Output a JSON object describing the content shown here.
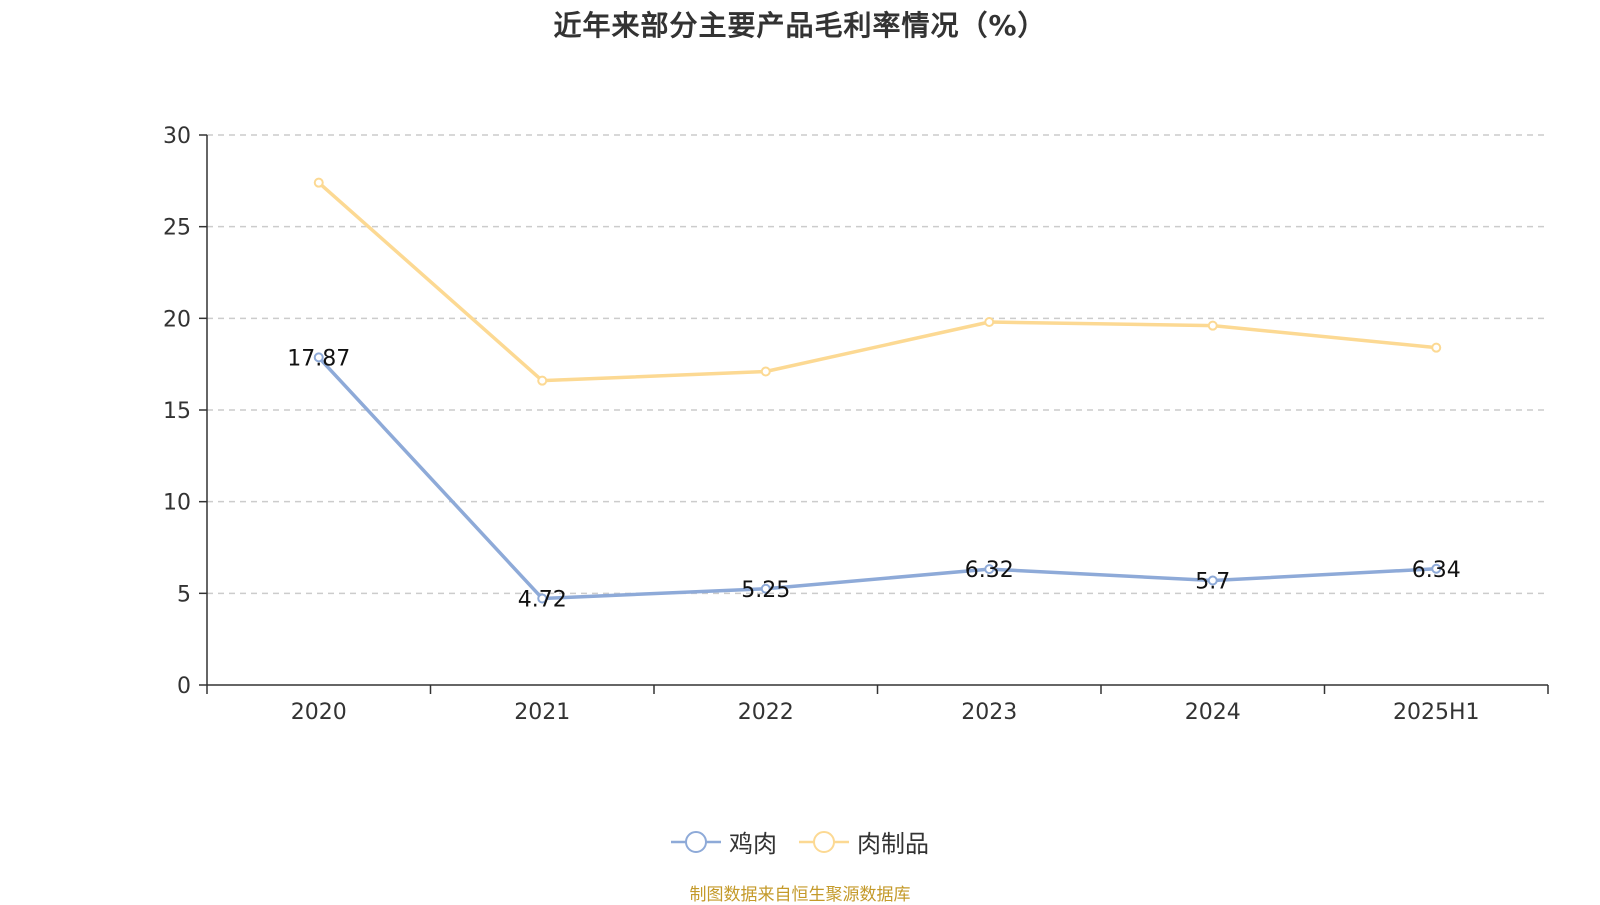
{
  "chart_data": {
    "type": "line",
    "title": "近年来部分主要产品毛利率情况（%）",
    "categories": [
      "2020",
      "2021",
      "2022",
      "2023",
      "2024",
      "2025H1"
    ],
    "ylim": [
      0,
      30
    ],
    "yticks": [
      0,
      5,
      10,
      15,
      20,
      25,
      30
    ],
    "grid": true,
    "legend_position": "bottom",
    "series": [
      {
        "name": "鸡肉",
        "values": [
          17.87,
          4.72,
          5.25,
          6.32,
          5.7,
          6.34
        ],
        "labels": [
          "17.87",
          "4.72",
          "5.25",
          "6.32",
          "5.7",
          "6.34"
        ],
        "show_labels": true,
        "color": "#8eaad8"
      },
      {
        "name": "肉制品",
        "values": [
          27.4,
          16.6,
          17.1,
          19.8,
          19.6,
          18.4
        ],
        "show_labels": false,
        "color": "#fcd993"
      }
    ]
  },
  "source_note": "制图数据来自恒生聚源数据库"
}
